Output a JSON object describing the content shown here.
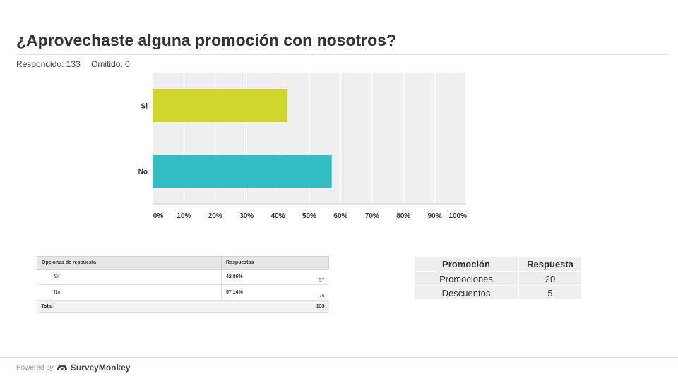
{
  "title": "¿Aprovechaste alguna promoción con nosotros?",
  "stats": {
    "answered": "Respondido: 133",
    "skipped": "Omitido: 0"
  },
  "chart_data": {
    "type": "bar",
    "orientation": "horizontal",
    "categories": [
      "Si",
      "No"
    ],
    "values": [
      42.86,
      57.14
    ],
    "colors": [
      "#cfd52a",
      "#33bec2"
    ],
    "xlim": [
      0,
      100
    ],
    "xticks": [
      "0%",
      "10%",
      "20%",
      "30%",
      "40%",
      "50%",
      "60%",
      "70%",
      "80%",
      "90%",
      "100%"
    ],
    "grid": true,
    "background": "#f0f0f0"
  },
  "response_table": {
    "headers": [
      "Opciones de respuesta",
      "Respuestas"
    ],
    "rows": [
      {
        "option": "Si",
        "percent": "42,86%",
        "count": "57"
      },
      {
        "option": "No",
        "percent": "57,14%",
        "count": "76"
      }
    ],
    "total_label": "Total",
    "total_count": "133"
  },
  "promo_table": {
    "headers": [
      "Promoción",
      "Respuesta"
    ],
    "rows": [
      {
        "name": "Promociones",
        "value": "20"
      },
      {
        "name": "Descuentos",
        "value": "5"
      }
    ]
  },
  "footer": {
    "powered_by": "Powered by",
    "brand": "SurveyMonkey"
  }
}
